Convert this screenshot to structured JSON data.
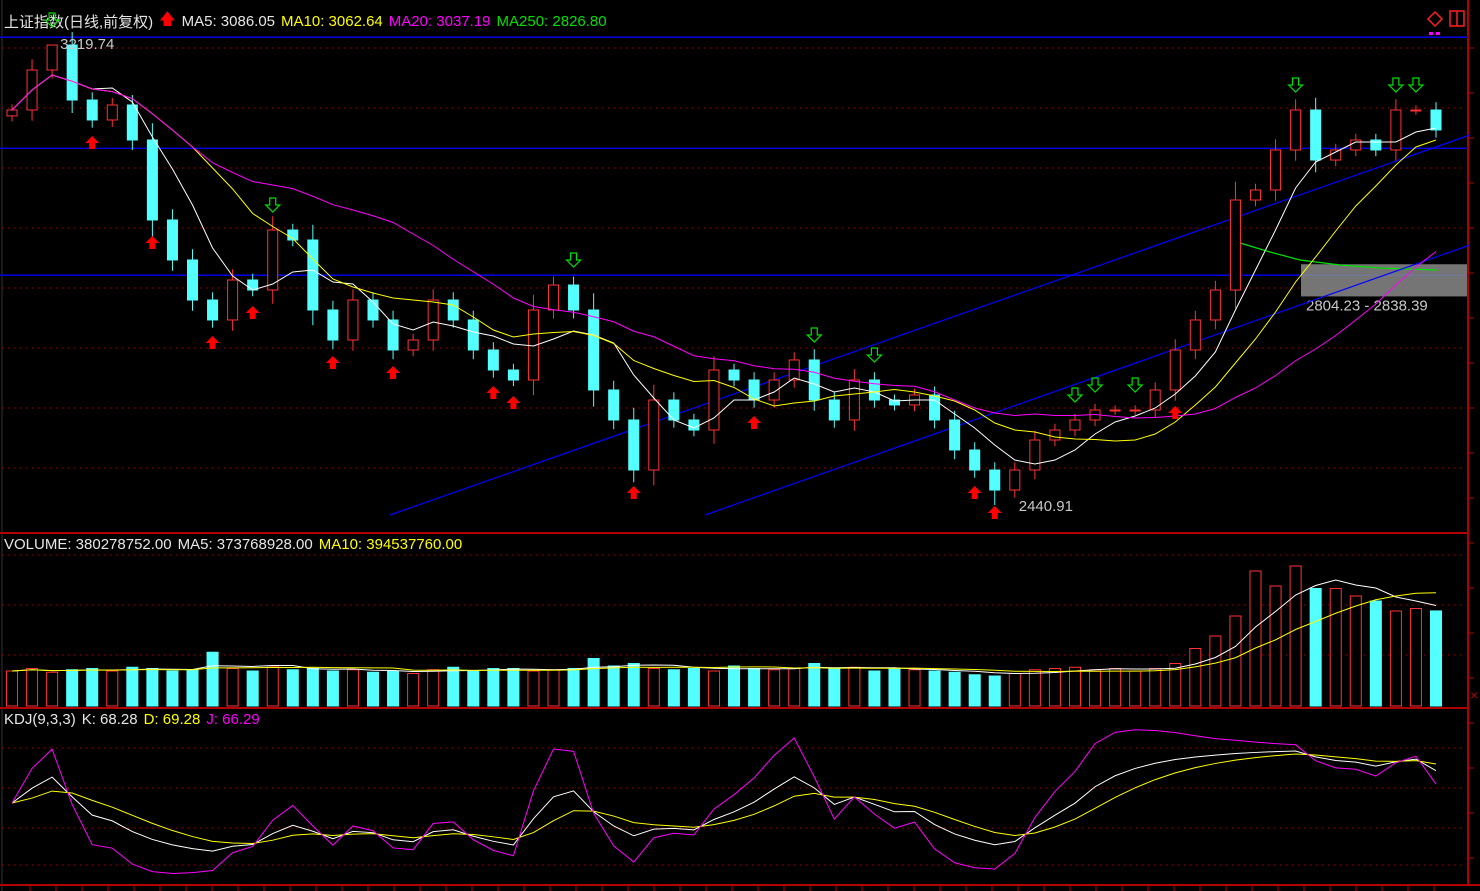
{
  "header": {
    "title": "上证指数(日线,前复权)",
    "ma5": "MA5: 3086.05",
    "ma10": "MA10: 3062.64",
    "ma20": "MA20: 3037.19",
    "ma250": "MA250: 2826.80"
  },
  "volume_header": {
    "volume": "VOLUME: 380278752.00",
    "ma5": "MA5: 373768928.00",
    "ma10": "MA10: 394537760.00"
  },
  "kdj_header": {
    "name": "KDJ(9,3,3)",
    "k": "K: 68.28",
    "d": "D: 69.28",
    "j": "J: 66.29"
  },
  "annotations": {
    "high_label": "3219.74",
    "low_label": "2440.91",
    "band_label": "2804.23 - 2838.39"
  },
  "colors": {
    "up": "#ff3333",
    "down": "#54ffff",
    "ma5": "#ffffff",
    "ma10": "#ffff00",
    "ma20": "#ff00ff",
    "ma250": "#00e000",
    "trendline": "#0000ff",
    "grid": "#b00000"
  },
  "icons": [
    "diamond-icon",
    "layout-toggle-icon",
    "up-arrow-signal-icon",
    "down-arrow-signal-icon"
  ],
  "chart_data": [
    {
      "type": "candlestick",
      "title": "上证指数(日线,前复权)",
      "extremes": {
        "high": 3219.74,
        "low": 2440.91
      },
      "horizontal_levels": [
        3233,
        3045,
        2830
      ],
      "band": [
        2804.23,
        2838.39
      ],
      "close": [
        3109.7,
        3177.4,
        3219.7,
        3126.6,
        3092.8,
        3118.2,
        3058.9,
        2923.5,
        2855.8,
        2788.0,
        2754.2,
        2821.9,
        2804.9,
        2906.5,
        2889.6,
        2771.1,
        2720.3,
        2788.0,
        2754.2,
        2703.4,
        2720.3,
        2788.0,
        2754.2,
        2703.4,
        2669.5,
        2652.6,
        2771.1,
        2813.4,
        2771.1,
        2635.7,
        2584.9,
        2500.2,
        2618.7,
        2584.9,
        2567.9,
        2669.5,
        2652.6,
        2618.7,
        2652.6,
        2686.5,
        2618.7,
        2584.9,
        2652.6,
        2618.7,
        2610.3,
        2627.2,
        2584.9,
        2534.1,
        2500.2,
        2466.3,
        2500.2,
        2551.0,
        2567.9,
        2584.9,
        2601.8,
        2601.8,
        2601.8,
        2635.7,
        2703.4,
        2754.2,
        2804.9,
        2957.3,
        2974.3,
        3042.0,
        3109.7,
        3025.0,
        3042.0,
        3058.9,
        3042.0,
        3109.7,
        3109.7,
        3075.9
      ],
      "buy_signals": [
        4,
        7,
        10,
        12,
        16,
        19,
        24,
        25,
        31,
        37,
        48,
        49,
        58
      ],
      "sell_signals": [
        2,
        13,
        28,
        40,
        43,
        53,
        54,
        56,
        64,
        69,
        70
      ]
    },
    {
      "type": "bar",
      "title": "VOLUME",
      "values": [
        140,
        150,
        135,
        145,
        150,
        140,
        155,
        150,
        140,
        145,
        215,
        150,
        140,
        160,
        145,
        150,
        140,
        145,
        135,
        140,
        130,
        145,
        155,
        140,
        150,
        150,
        140,
        145,
        150,
        190,
        160,
        170,
        150,
        145,
        150,
        140,
        160,
        150,
        145,
        150,
        170,
        150,
        155,
        140,
        150,
        145,
        140,
        135,
        125,
        120,
        130,
        145,
        150,
        155,
        145,
        150,
        140,
        150,
        170,
        230,
        280,
        360,
        540,
        480,
        560,
        470,
        470,
        440,
        420,
        380,
        390,
        380.28
      ]
    },
    {
      "type": "line",
      "title": "KDJ(9,3,3)",
      "series": [
        {
          "name": "K",
          "last": 68.28
        },
        {
          "name": "D",
          "last": 69.28
        },
        {
          "name": "J",
          "last": 66.29
        }
      ]
    }
  ]
}
